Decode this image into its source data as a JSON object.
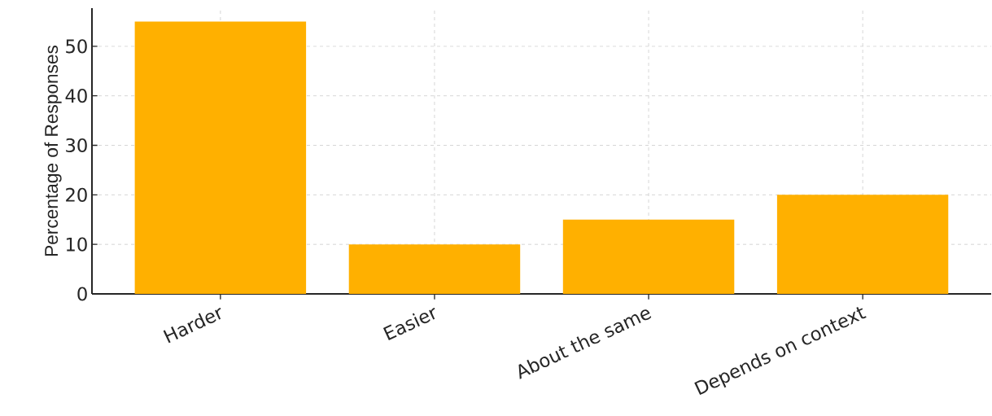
{
  "chart_data": {
    "type": "bar",
    "ylabel": "Percentage of Responses",
    "categories": [
      "Harder",
      "Easier",
      "About the same",
      "Depends on context"
    ],
    "values": [
      55,
      10,
      15,
      20
    ],
    "color": "#ffb000",
    "ylim": [
      0,
      57.7
    ],
    "yticks": [
      0,
      10,
      20,
      30,
      40,
      50
    ],
    "grid": true
  }
}
